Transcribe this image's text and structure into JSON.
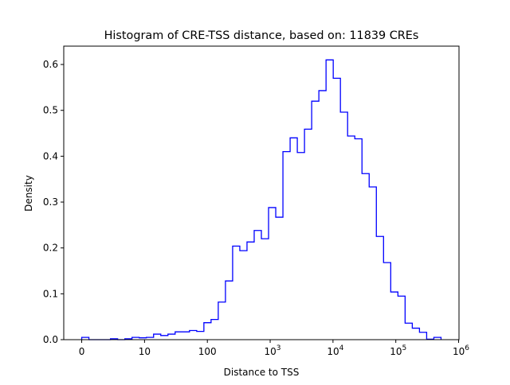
{
  "chart_data": {
    "type": "histogram",
    "title": "Histogram of CRE-TSS distance, based on: 11839 CREs",
    "xlabel": "Distance to TSS",
    "ylabel": "Density",
    "x_scale": "log10(distance+1)",
    "bin_range": [
      0,
      5.72
    ],
    "xlim": [
      -0.286,
      6.006
    ],
    "ylim": [
      0,
      0.64
    ],
    "x_ticks": [
      {
        "value": 0,
        "label": "0",
        "sup": ""
      },
      {
        "value": 1,
        "label": "10",
        "sup": ""
      },
      {
        "value": 2,
        "label": "100",
        "sup": ""
      },
      {
        "value": 3,
        "label": "10",
        "sup": "3"
      },
      {
        "value": 4,
        "label": "10",
        "sup": "4"
      },
      {
        "value": 5,
        "label": "10",
        "sup": "5"
      },
      {
        "value": 6,
        "label": "10",
        "sup": "6"
      }
    ],
    "y_ticks": [
      "0.0",
      "0.1",
      "0.2",
      "0.3",
      "0.4",
      "0.5",
      "0.6"
    ],
    "line_color": "#0000ff",
    "densities": [
      0.005,
      0,
      0,
      0,
      0.002,
      0,
      0.002,
      0.005,
      0.004,
      0.005,
      0.012,
      0.009,
      0.012,
      0.017,
      0.017,
      0.02,
      0.018,
      0.037,
      0.044,
      0.082,
      0.128,
      0.204,
      0.194,
      0.213,
      0.238,
      0.22,
      0.288,
      0.267,
      0.41,
      0.44,
      0.408,
      0.459,
      0.52,
      0.543,
      0.61,
      0.57,
      0.496,
      0.444,
      0.438,
      0.362,
      0.333,
      0.225,
      0.168,
      0.104,
      0.095,
      0.036,
      0.025,
      0.016,
      0.001,
      0.005
    ]
  }
}
